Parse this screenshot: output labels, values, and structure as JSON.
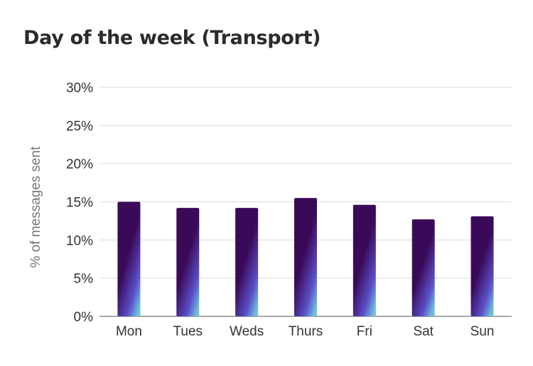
{
  "chart_data": {
    "type": "bar",
    "title": "Day of the week (Transport)",
    "xlabel": "",
    "ylabel": "% of messages sent",
    "categories": [
      "Mon",
      "Tues",
      "Weds",
      "Thurs",
      "Fri",
      "Sat",
      "Sun"
    ],
    "values": [
      15.0,
      14.2,
      14.2,
      15.5,
      14.6,
      12.7,
      13.1
    ],
    "ylim": [
      0,
      30
    ],
    "yticks": [
      0,
      5,
      10,
      15,
      20,
      25,
      30
    ],
    "ytick_labels": [
      "0%",
      "5%",
      "10%",
      "15%",
      "20%",
      "25%",
      "30%"
    ],
    "grid": true,
    "legend": "none",
    "colors": {
      "bar_top": "#3a0a58",
      "bar_mid": "#5b4fc8",
      "bar_bottom": "#6ec0dc",
      "grid": "#e6e6e6",
      "axis": "#aaaaaa"
    }
  }
}
